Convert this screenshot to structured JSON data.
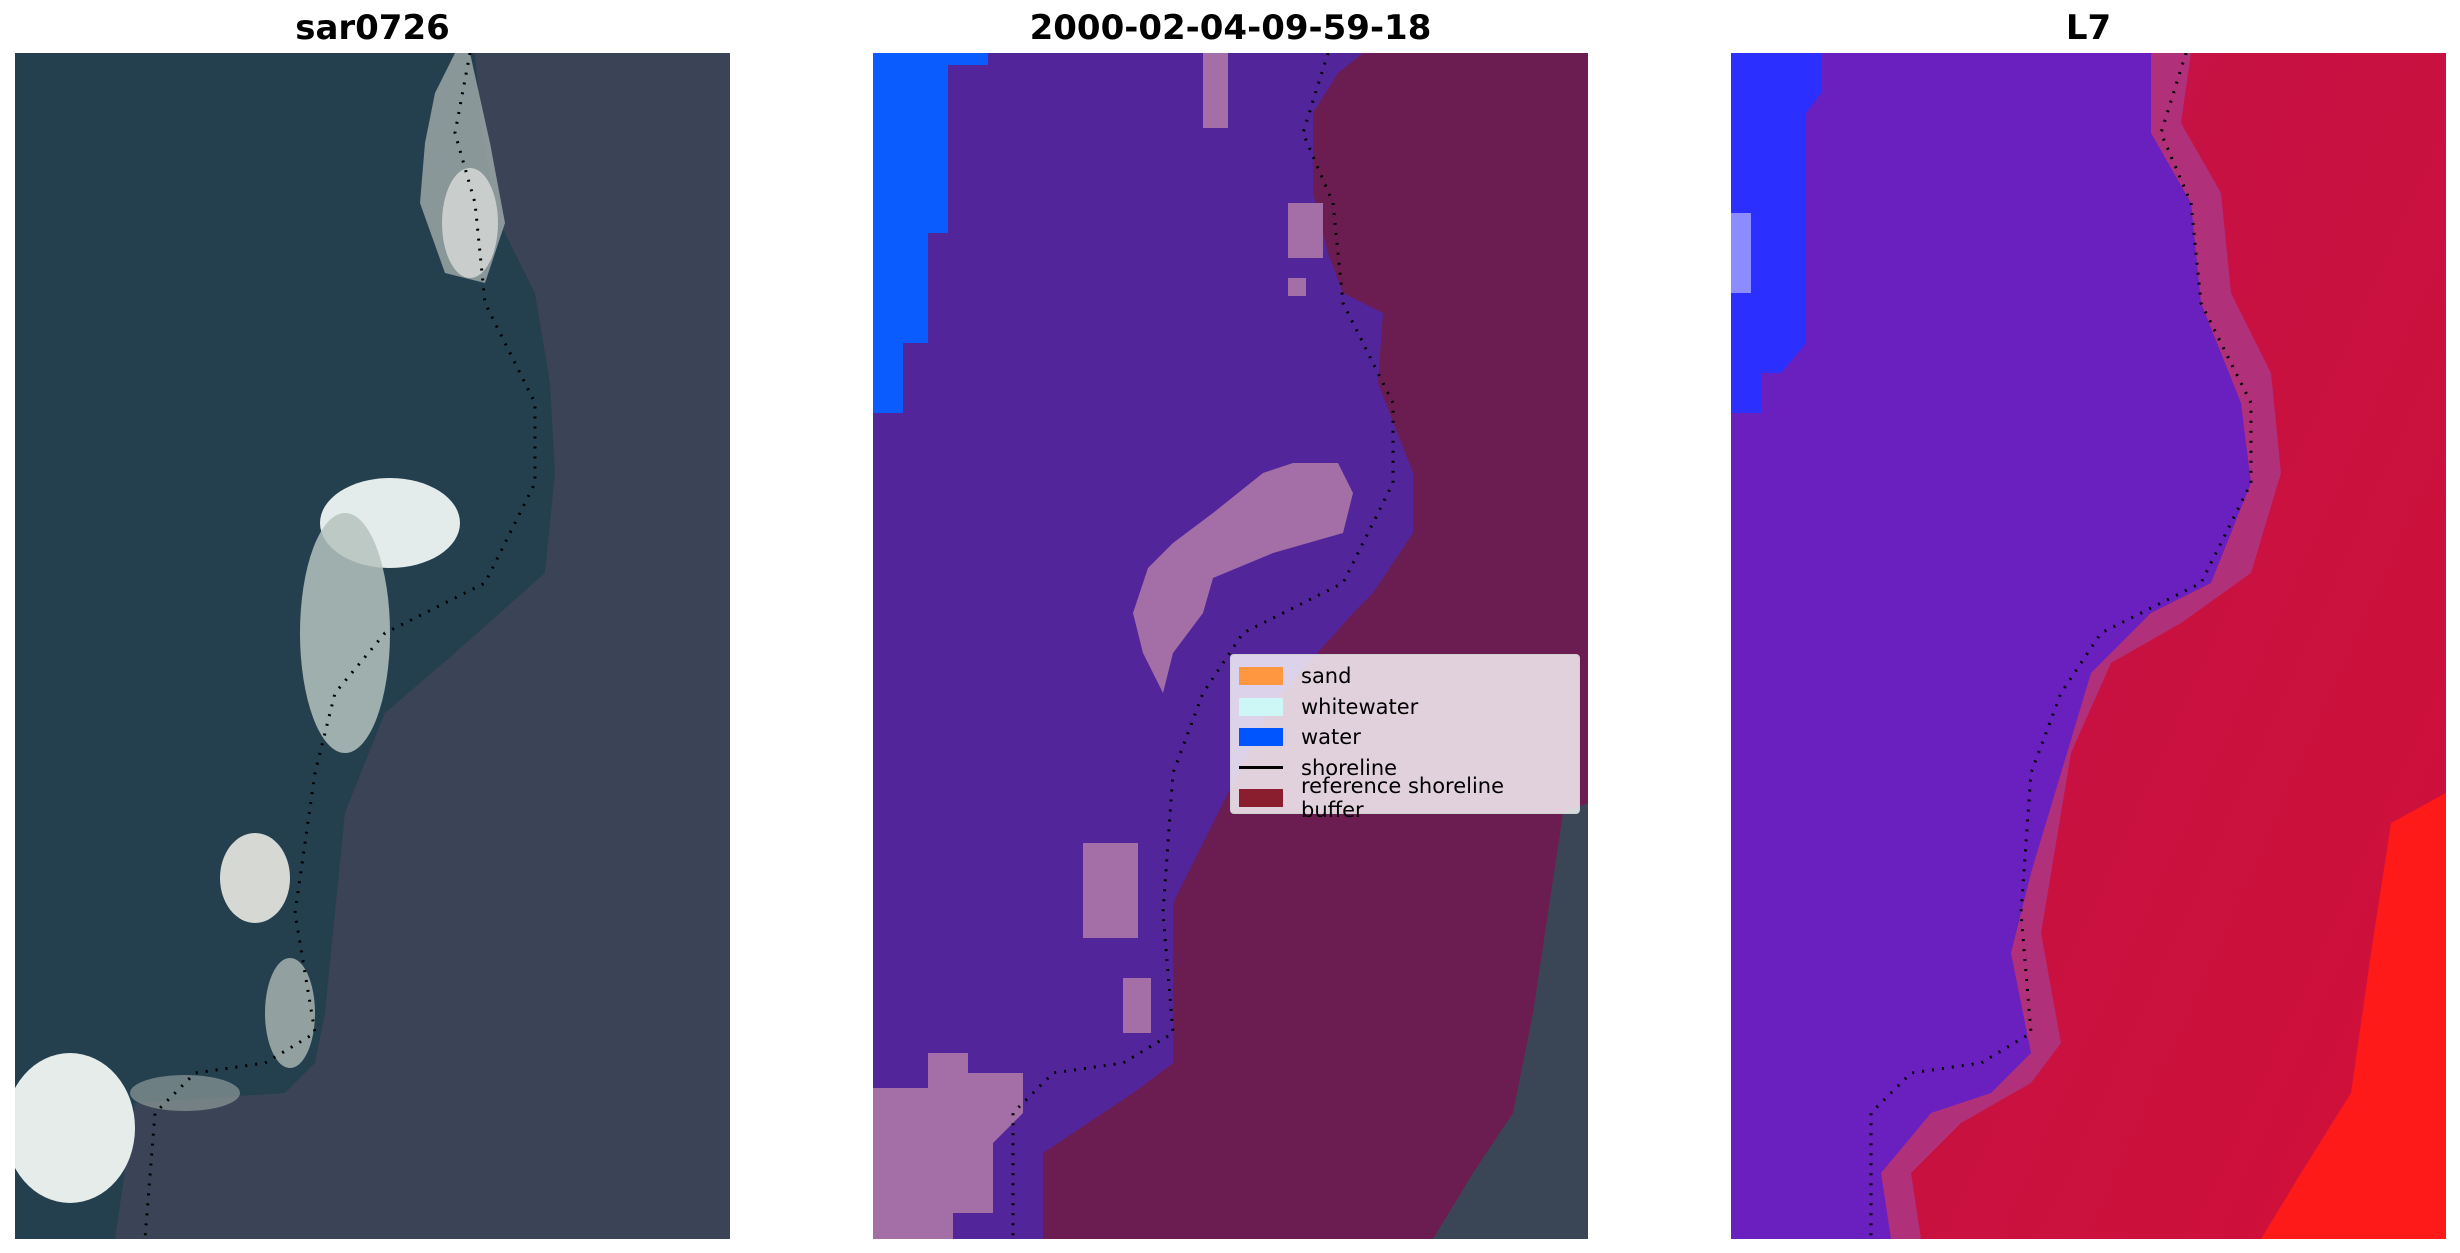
{
  "panels": [
    {
      "title": "sar0726",
      "kind": "rgb"
    },
    {
      "title": "2000-02-04-09-59-18",
      "kind": "classification"
    },
    {
      "title": "L7",
      "kind": "index"
    }
  ],
  "legend": {
    "items": [
      {
        "label": "sand",
        "type": "patch",
        "color": "#ff9640"
      },
      {
        "label": "whitewater",
        "type": "patch",
        "color": "#cdf7f7"
      },
      {
        "label": "water",
        "type": "patch",
        "color": "#0055ff"
      },
      {
        "label": "shoreline",
        "type": "line",
        "color": "#000000"
      },
      {
        "label": "reference shoreline buffer",
        "type": "patch",
        "color": "#8b1e2e"
      }
    ]
  },
  "colors": {
    "ocean": "#1f3d55",
    "land": "#3d4556",
    "white_sand": "#e8ecea",
    "water_class": "#0a5cff",
    "other_class": "#52269a",
    "whitewater_class": "#a46fa6",
    "buffer_class": "#6b1d52",
    "index_low": "#6a1fbf",
    "index_high": "#d01038",
    "index_water": "#2b2fff"
  }
}
